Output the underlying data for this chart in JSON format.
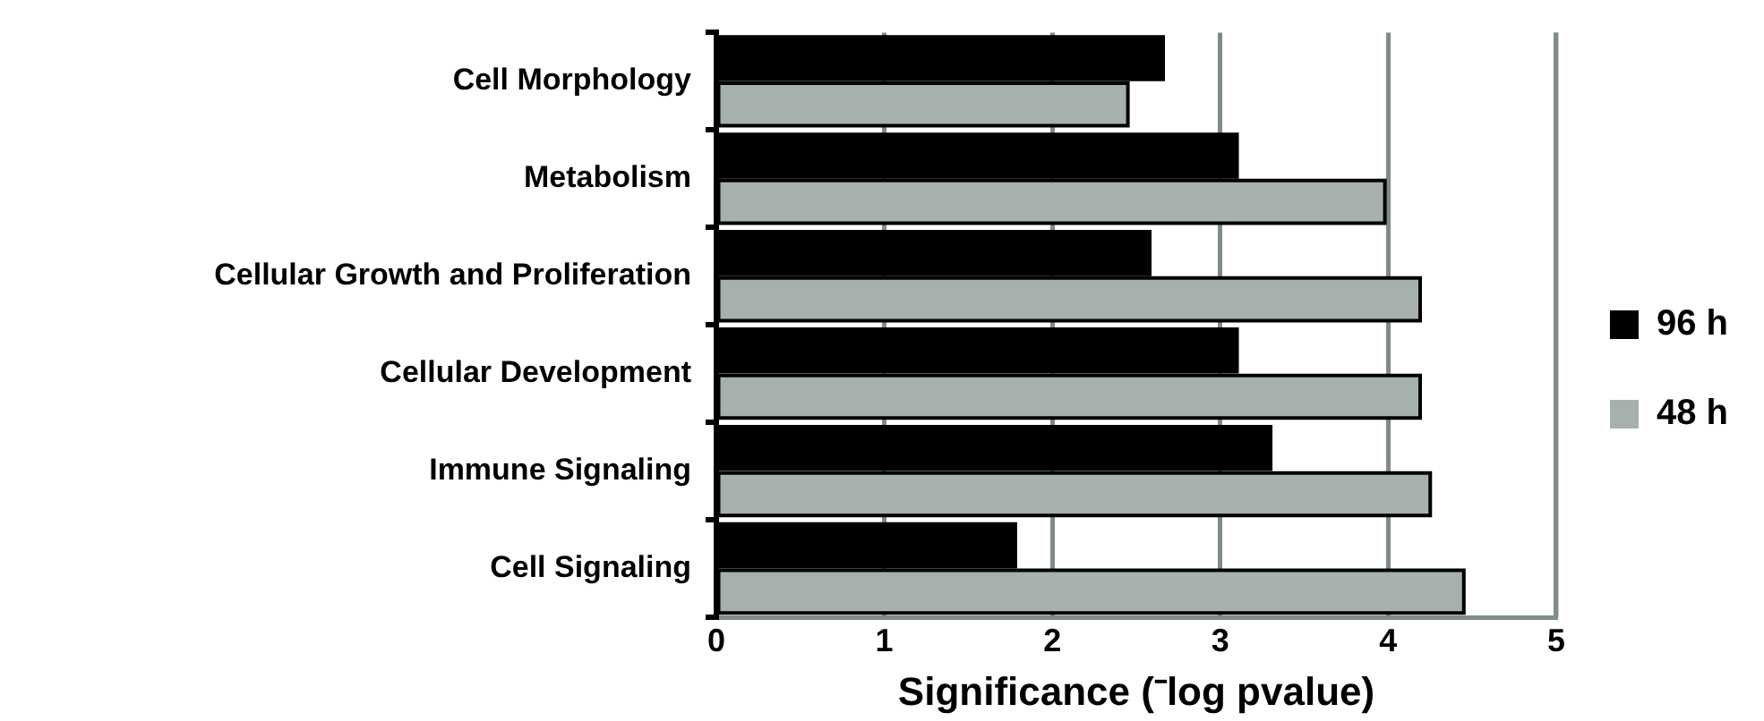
{
  "chart_data": {
    "type": "bar",
    "orientation": "horizontal",
    "xlabel": "Significance (⁻log pvalue)",
    "categories": [
      "Cell Morphology",
      "Metabolism",
      "Cellular Growth and Proliferation",
      "Cellular Development",
      "Immune Signaling",
      "Cell Signaling"
    ],
    "series": [
      {
        "name": "96 h",
        "color": "#000000",
        "values": [
          2.66,
          3.1,
          2.58,
          3.1,
          3.3,
          1.78
        ]
      },
      {
        "name": "48 h",
        "color": "#a6b0ae",
        "values": [
          2.45,
          3.98,
          4.19,
          4.19,
          4.25,
          4.45
        ]
      }
    ],
    "xlim": [
      0,
      5
    ],
    "xticks": [
      0,
      1,
      2,
      3,
      4,
      5
    ],
    "grid": "x",
    "legend": "right"
  }
}
